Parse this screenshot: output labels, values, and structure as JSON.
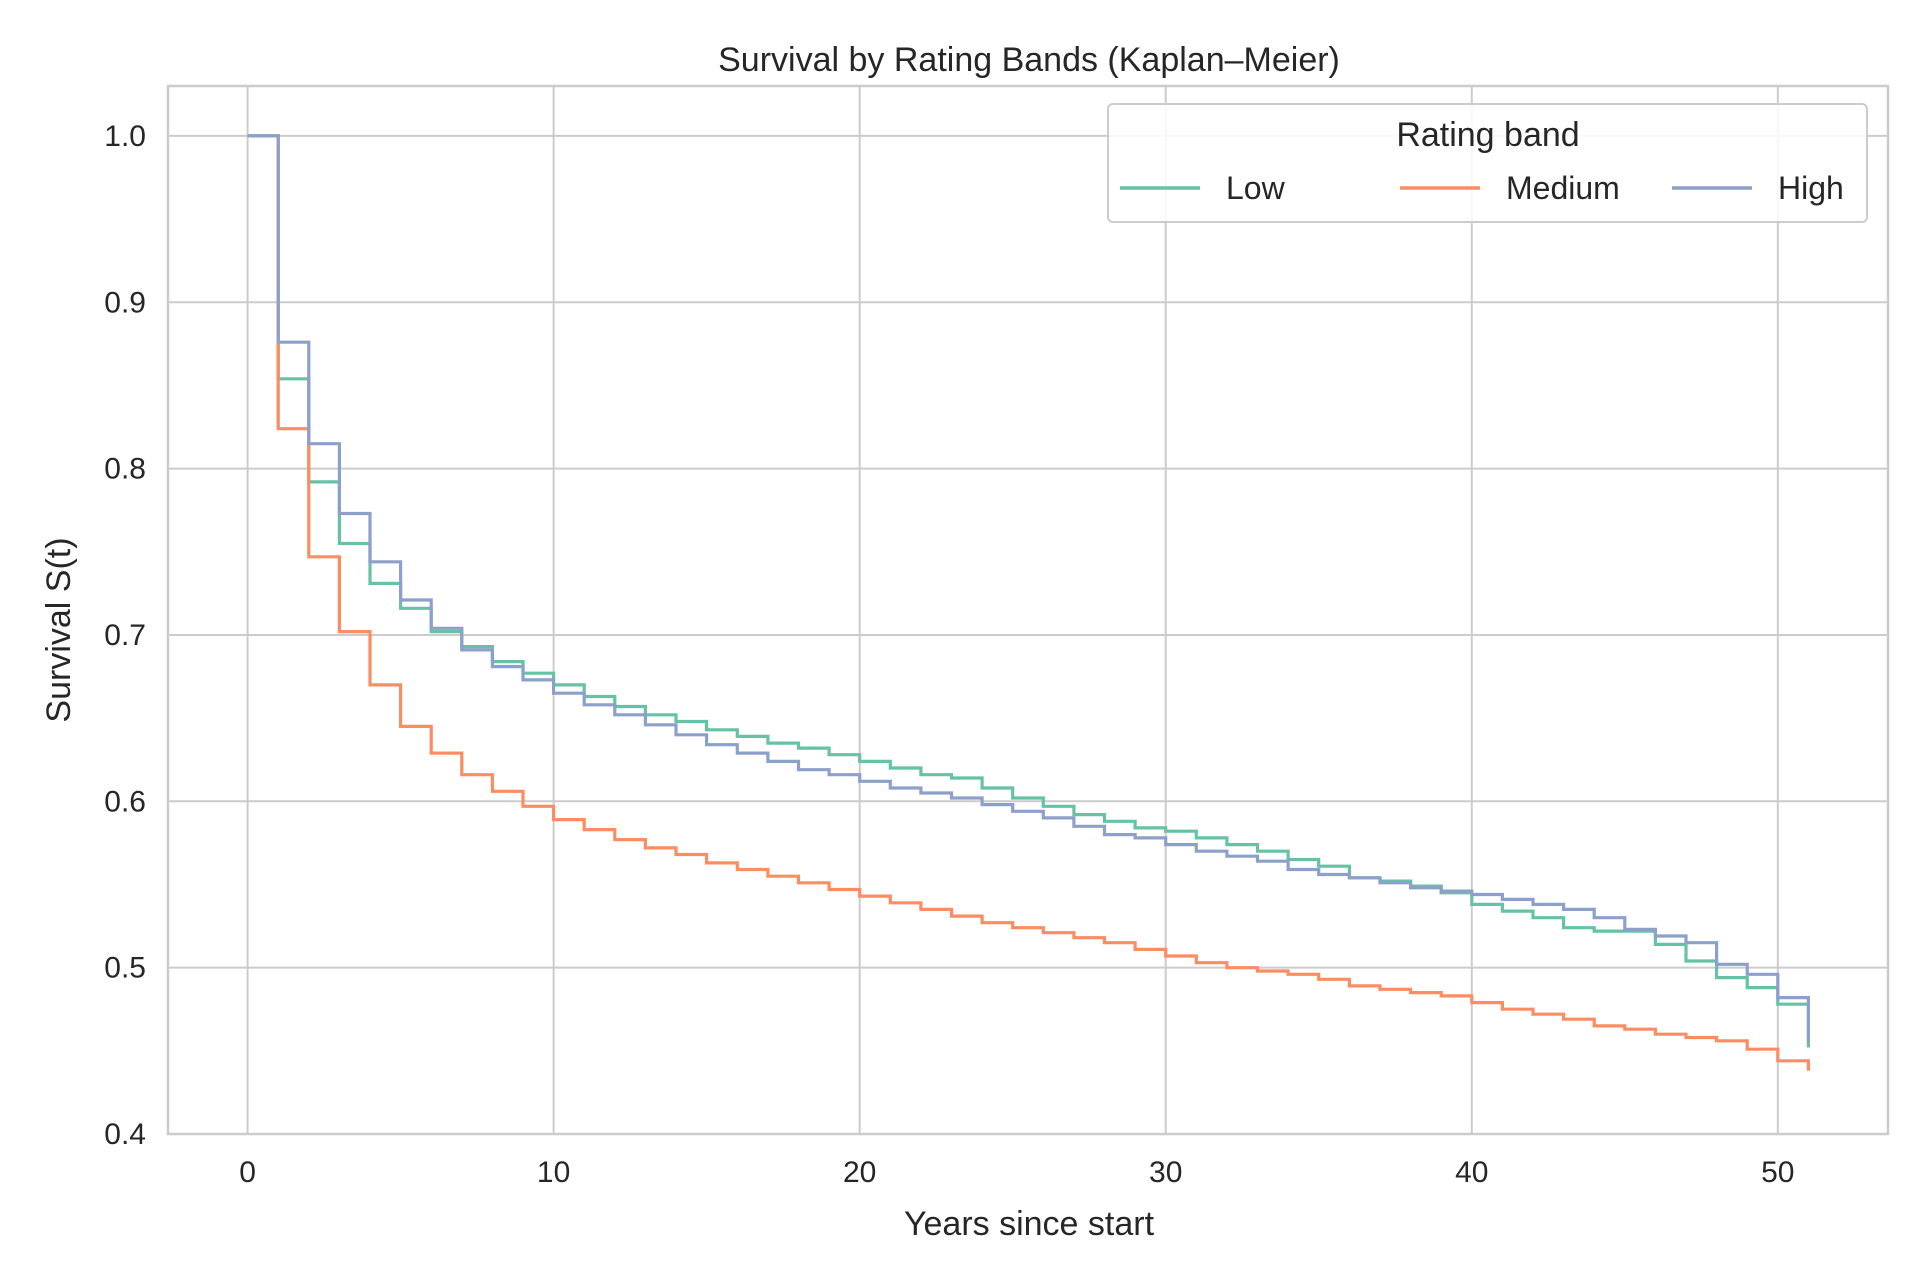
{
  "chart_data": {
    "type": "line",
    "step": true,
    "title": "Survival by Rating Bands (Kaplan–Meier)",
    "xlabel": "Years since start",
    "ylabel": "Survival S(t)",
    "xlim": [
      -2.6,
      53.6
    ],
    "ylim": [
      0.4,
      1.03
    ],
    "xticks": [
      0,
      10,
      20,
      30,
      40,
      50
    ],
    "yticks": [
      0.4,
      0.5,
      0.6,
      0.7,
      0.8,
      0.9,
      1.0
    ],
    "xtick_labels": [
      "0",
      "10",
      "20",
      "30",
      "40",
      "50"
    ],
    "ytick_labels": [
      "0.4",
      "0.5",
      "0.6",
      "0.7",
      "0.8",
      "0.9",
      "1.0"
    ],
    "grid": true,
    "legend": {
      "title": "Rating band",
      "position": "top-right",
      "columns": 3
    },
    "series": [
      {
        "name": "Low",
        "color": "#66c2a5",
        "x": [
          0,
          1,
          2,
          3,
          4,
          5,
          6,
          7,
          8,
          9,
          10,
          11,
          12,
          13,
          14,
          15,
          16,
          17,
          18,
          19,
          20,
          21,
          22,
          23,
          24,
          25,
          26,
          27,
          28,
          29,
          30,
          31,
          32,
          33,
          34,
          35,
          36,
          37,
          38,
          39,
          40,
          41,
          42,
          43,
          44,
          45,
          46,
          47,
          48,
          49,
          50,
          51
        ],
        "y": [
          1.0,
          0.854,
          0.792,
          0.755,
          0.731,
          0.716,
          0.702,
          0.693,
          0.684,
          0.677,
          0.67,
          0.663,
          0.657,
          0.652,
          0.648,
          0.643,
          0.639,
          0.635,
          0.632,
          0.628,
          0.624,
          0.62,
          0.616,
          0.614,
          0.608,
          0.602,
          0.597,
          0.592,
          0.588,
          0.584,
          0.582,
          0.578,
          0.574,
          0.57,
          0.565,
          0.561,
          0.554,
          0.552,
          0.549,
          0.545,
          0.538,
          0.534,
          0.53,
          0.524,
          0.522,
          0.522,
          0.514,
          0.504,
          0.494,
          0.488,
          0.478,
          0.452
        ]
      },
      {
        "name": "Medium",
        "color": "#fc8d62",
        "x": [
          0,
          1,
          2,
          3,
          4,
          5,
          6,
          7,
          8,
          9,
          10,
          11,
          12,
          13,
          14,
          15,
          16,
          17,
          18,
          19,
          20,
          21,
          22,
          23,
          24,
          25,
          26,
          27,
          28,
          29,
          30,
          31,
          32,
          33,
          34,
          35,
          36,
          37,
          38,
          39,
          40,
          41,
          42,
          43,
          44,
          45,
          46,
          47,
          48,
          49,
          50,
          51
        ],
        "y": [
          1.0,
          0.824,
          0.747,
          0.702,
          0.67,
          0.645,
          0.629,
          0.616,
          0.606,
          0.597,
          0.589,
          0.583,
          0.577,
          0.572,
          0.568,
          0.563,
          0.559,
          0.555,
          0.551,
          0.547,
          0.543,
          0.539,
          0.535,
          0.531,
          0.527,
          0.524,
          0.521,
          0.518,
          0.515,
          0.511,
          0.507,
          0.503,
          0.5,
          0.498,
          0.496,
          0.493,
          0.489,
          0.487,
          0.485,
          0.483,
          0.479,
          0.475,
          0.472,
          0.469,
          0.465,
          0.463,
          0.46,
          0.458,
          0.456,
          0.451,
          0.444,
          0.438
        ]
      },
      {
        "name": "High",
        "color": "#8da0cb",
        "x": [
          0,
          1,
          2,
          3,
          4,
          5,
          6,
          7,
          8,
          9,
          10,
          11,
          12,
          13,
          14,
          15,
          16,
          17,
          18,
          19,
          20,
          21,
          22,
          23,
          24,
          25,
          26,
          27,
          28,
          29,
          30,
          31,
          32,
          33,
          34,
          35,
          36,
          37,
          38,
          39,
          40,
          41,
          42,
          43,
          44,
          45,
          46,
          47,
          48,
          49,
          50,
          51
        ],
        "y": [
          1.0,
          0.876,
          0.815,
          0.773,
          0.744,
          0.721,
          0.704,
          0.691,
          0.681,
          0.673,
          0.665,
          0.658,
          0.652,
          0.646,
          0.64,
          0.634,
          0.629,
          0.624,
          0.619,
          0.616,
          0.612,
          0.608,
          0.605,
          0.602,
          0.598,
          0.594,
          0.59,
          0.585,
          0.58,
          0.578,
          0.574,
          0.57,
          0.567,
          0.564,
          0.559,
          0.556,
          0.554,
          0.551,
          0.548,
          0.546,
          0.544,
          0.541,
          0.538,
          0.535,
          0.53,
          0.523,
          0.519,
          0.515,
          0.502,
          0.496,
          0.482,
          0.455
        ]
      }
    ]
  }
}
